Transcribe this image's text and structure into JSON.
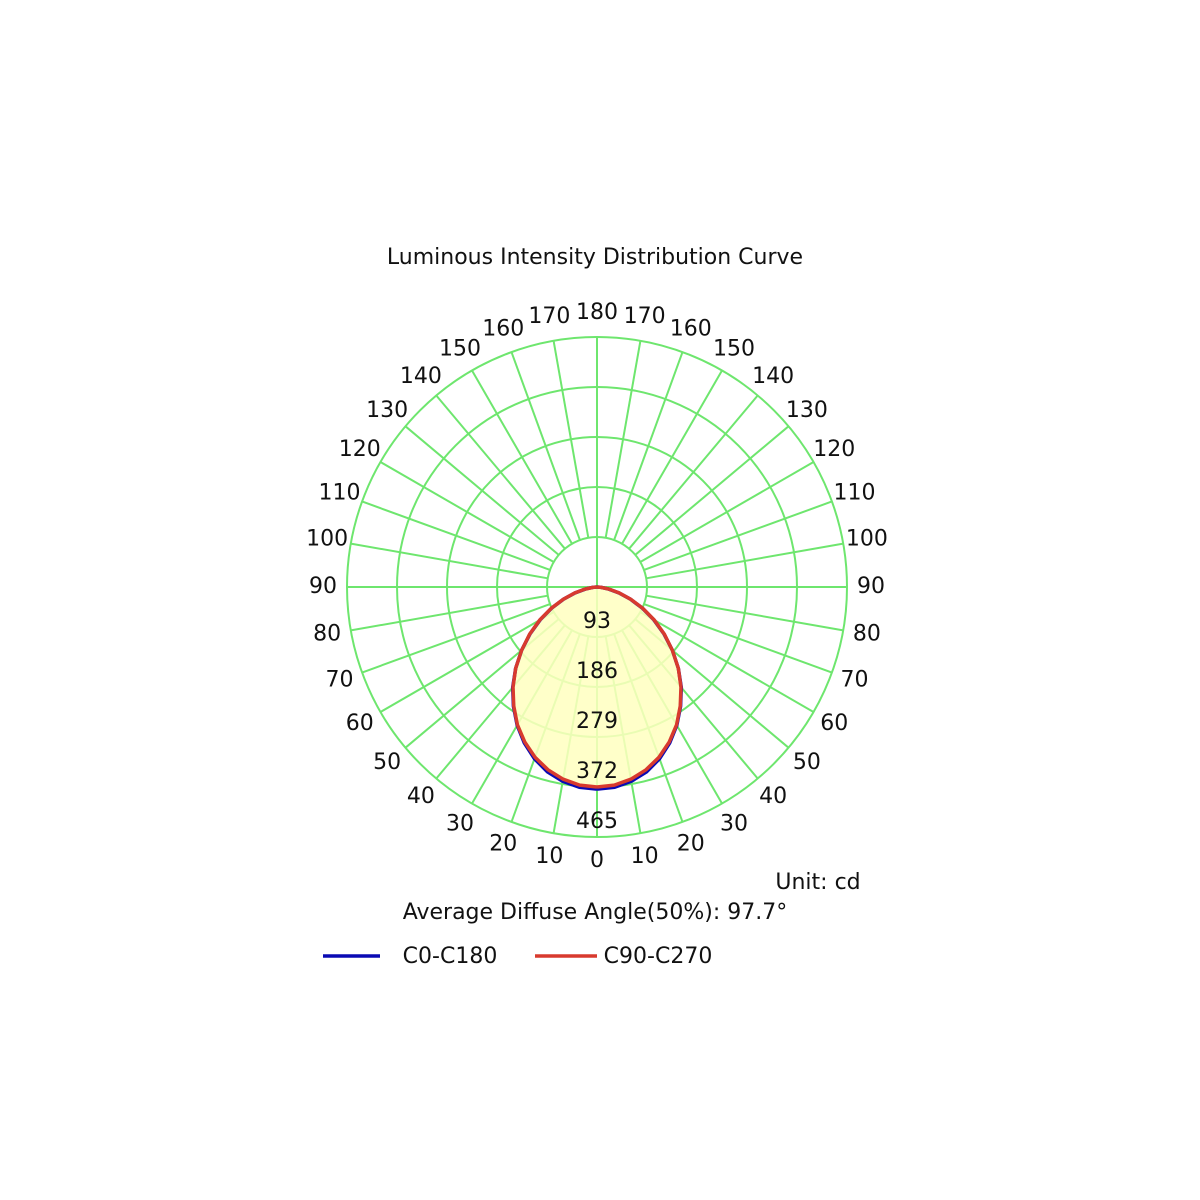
{
  "chart_data": {
    "type": "polar",
    "title": "Luminous Intensity Distribution Curve",
    "unit_label": "Unit: cd",
    "annotation": "Average Diffuse Angle(50%): 97.7°",
    "x": [
      0,
      5,
      10,
      15,
      20,
      25,
      30,
      35,
      40,
      45,
      50,
      55,
      60,
      65,
      70,
      75,
      80,
      85,
      90
    ],
    "xlim": [
      0,
      180
    ],
    "xticks": [
      0,
      10,
      20,
      30,
      40,
      50,
      60,
      70,
      80,
      90,
      100,
      110,
      120,
      130,
      140,
      150,
      160,
      170,
      180
    ],
    "ylim": [
      0,
      465
    ],
    "yticks": [
      93,
      186,
      279,
      372,
      465
    ],
    "grid": true,
    "grid_color": "#6ee66e",
    "fill_color": "#ffffc0",
    "series": [
      {
        "name": "C0-C180",
        "color": "#0a0ab4",
        "values": [
          376,
          374,
          367,
          356,
          340,
          320,
          297,
          271,
          244,
          214,
          183,
          152,
          122,
          93,
          66,
          42,
          22,
          8,
          0
        ]
      },
      {
        "name": "C90-C270",
        "color": "#d83a2e",
        "values": [
          372,
          370,
          363,
          352,
          337,
          318,
          296,
          270,
          243,
          214,
          183,
          153,
          123,
          94,
          67,
          43,
          23,
          8,
          0
        ]
      }
    ]
  }
}
